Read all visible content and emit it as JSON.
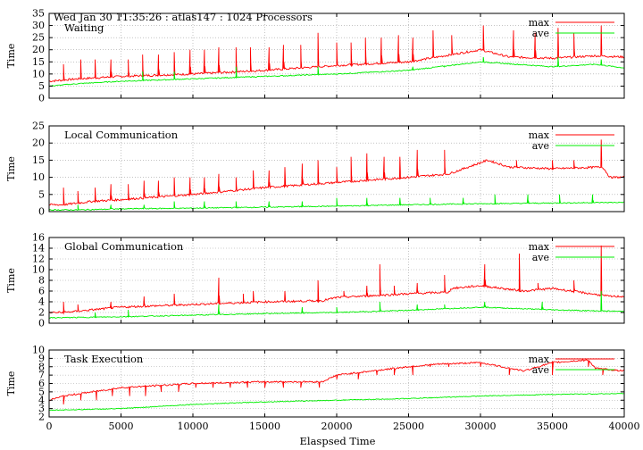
{
  "header": {
    "timestamp_line": "Wed Jan 30 11:35:26 : atlas147 : 1024 Processors"
  },
  "colors": {
    "max": "#ff0000",
    "ave": "#00ee00",
    "grid": "#a0a0a0"
  },
  "shared_xlabel": "Elaspsed Time",
  "chart_data": [
    {
      "type": "line",
      "title": "Waiting",
      "ylabel": "Time",
      "xlim": [
        0,
        40000
      ],
      "ylim": [
        0,
        35
      ],
      "yticks": [
        0,
        5,
        10,
        15,
        20,
        25,
        30,
        35
      ],
      "xticks": [
        0,
        5000,
        10000,
        15000,
        20000,
        25000,
        30000,
        35000,
        40000
      ],
      "grid": true,
      "legend_position": "top-right",
      "series": [
        {
          "name": "max",
          "x": [
            0,
            2000,
            5000,
            10000,
            15000,
            20000,
            25000,
            30000,
            32000,
            35000,
            38000,
            40000
          ],
          "values": [
            7,
            8,
            9,
            10,
            11.5,
            13.5,
            15,
            20,
            17,
            16.5,
            17.5,
            17
          ],
          "spikes": [
            [
              1000,
              14
            ],
            [
              2200,
              16
            ],
            [
              3200,
              16
            ],
            [
              4300,
              16
            ],
            [
              5500,
              16
            ],
            [
              6500,
              18
            ],
            [
              7600,
              18
            ],
            [
              8700,
              19
            ],
            [
              9800,
              20
            ],
            [
              10800,
              20
            ],
            [
              11800,
              21
            ],
            [
              13000,
              21
            ],
            [
              14000,
              21
            ],
            [
              15300,
              21
            ],
            [
              16300,
              22
            ],
            [
              17500,
              22
            ],
            [
              18700,
              27
            ],
            [
              20000,
              23
            ],
            [
              21000,
              23
            ],
            [
              22000,
              25
            ],
            [
              23100,
              25
            ],
            [
              24300,
              26
            ],
            [
              25300,
              25
            ],
            [
              26700,
              28
            ],
            [
              28000,
              26
            ],
            [
              30200,
              30
            ],
            [
              32300,
              28
            ],
            [
              33800,
              27
            ],
            [
              35400,
              29
            ],
            [
              36500,
              27
            ],
            [
              38400,
              30
            ]
          ]
        },
        {
          "name": "ave",
          "x": [
            0,
            2000,
            5000,
            10000,
            15000,
            20000,
            25000,
            30000,
            35000,
            38000,
            40000
          ],
          "values": [
            5,
            6,
            7,
            8,
            9,
            10,
            11.5,
            15,
            13,
            14,
            12.5
          ],
          "spikes": [
            [
              6500,
              11
            ],
            [
              8700,
              11
            ],
            [
              13000,
              13
            ],
            [
              18700,
              13
            ],
            [
              25300,
              13
            ],
            [
              27500,
              13
            ],
            [
              30200,
              17
            ],
            [
              35400,
              17
            ],
            [
              38400,
              16
            ]
          ]
        }
      ]
    },
    {
      "type": "line",
      "title": "Local Communication",
      "ylabel": "Time",
      "xlim": [
        0,
        40000
      ],
      "ylim": [
        0,
        25
      ],
      "yticks": [
        0,
        5,
        10,
        15,
        20,
        25
      ],
      "xticks": [
        0,
        5000,
        10000,
        15000,
        20000,
        25000,
        30000,
        35000,
        40000
      ],
      "grid": true,
      "legend_position": "top-right",
      "series": [
        {
          "name": "max",
          "x": [
            0,
            1000,
            3000,
            5000,
            10000,
            15000,
            20000,
            25000,
            27800,
            30500,
            32000,
            35000,
            38500,
            39000,
            40000
          ],
          "values": [
            2,
            2,
            3,
            3.5,
            5,
            7,
            8.5,
            10,
            11,
            15,
            13,
            12.5,
            13,
            10,
            10
          ],
          "spikes": [
            [
              1000,
              7
            ],
            [
              2000,
              6
            ],
            [
              3200,
              7
            ],
            [
              4300,
              8
            ],
            [
              5500,
              8
            ],
            [
              6600,
              9
            ],
            [
              7600,
              9
            ],
            [
              8700,
              10
            ],
            [
              9800,
              10
            ],
            [
              10800,
              10
            ],
            [
              11800,
              11
            ],
            [
              13000,
              10
            ],
            [
              14200,
              12
            ],
            [
              15300,
              12
            ],
            [
              16400,
              13
            ],
            [
              17600,
              14
            ],
            [
              18700,
              15
            ],
            [
              20000,
              13
            ],
            [
              21000,
              16
            ],
            [
              22100,
              17
            ],
            [
              23300,
              16
            ],
            [
              24400,
              16
            ],
            [
              25600,
              18
            ],
            [
              27500,
              18
            ],
            [
              32500,
              15
            ],
            [
              35000,
              15
            ],
            [
              36500,
              15
            ],
            [
              38400,
              21
            ]
          ]
        },
        {
          "name": "ave",
          "x": [
            0,
            2000,
            5000,
            10000,
            15000,
            20000,
            25000,
            30000,
            35000,
            40000
          ],
          "values": [
            0.5,
            0.5,
            0.8,
            1,
            1.3,
            1.6,
            2,
            2.3,
            2.5,
            2.7
          ],
          "spikes": [
            [
              2000,
              2
            ],
            [
              4300,
              2
            ],
            [
              6600,
              2
            ],
            [
              8700,
              3
            ],
            [
              10800,
              3
            ],
            [
              13000,
              3
            ],
            [
              15300,
              3
            ],
            [
              17600,
              3
            ],
            [
              20000,
              4
            ],
            [
              22100,
              4
            ],
            [
              24400,
              4
            ],
            [
              26500,
              4
            ],
            [
              28800,
              4
            ],
            [
              31000,
              5
            ],
            [
              33300,
              5
            ],
            [
              35500,
              5
            ],
            [
              37800,
              5
            ]
          ]
        }
      ]
    },
    {
      "type": "line",
      "title": "Global Communication",
      "ylabel": "Time",
      "xlim": [
        0,
        40000
      ],
      "ylim": [
        0,
        16
      ],
      "yticks": [
        0,
        2,
        4,
        6,
        8,
        10,
        12,
        14,
        16
      ],
      "xticks": [
        0,
        5000,
        10000,
        15000,
        20000,
        25000,
        30000,
        35000,
        40000
      ],
      "grid": true,
      "legend_position": "top-right",
      "series": [
        {
          "name": "max",
          "x": [
            0,
            1000,
            3000,
            5000,
            10000,
            15000,
            19000,
            20000,
            25000,
            27800,
            28000,
            30000,
            33000,
            35000,
            39000,
            40000
          ],
          "values": [
            2,
            2,
            2.5,
            3,
            3.5,
            4,
            4.2,
            4.8,
            5.5,
            5.8,
            6.5,
            7,
            6,
            6.5,
            5,
            5
          ],
          "spikes": [
            [
              1000,
              4
            ],
            [
              2000,
              3.5
            ],
            [
              4300,
              4
            ],
            [
              6600,
              5
            ],
            [
              8700,
              5.5
            ],
            [
              11800,
              8.5
            ],
            [
              13500,
              5.5
            ],
            [
              14200,
              6
            ],
            [
              16400,
              6
            ],
            [
              18700,
              8
            ],
            [
              20500,
              6
            ],
            [
              22100,
              7
            ],
            [
              23000,
              11
            ],
            [
              24000,
              7
            ],
            [
              25600,
              7.5
            ],
            [
              27500,
              9
            ],
            [
              30300,
              11
            ],
            [
              32700,
              13
            ],
            [
              34000,
              7.5
            ],
            [
              36500,
              8
            ],
            [
              38400,
              14.5
            ]
          ]
        },
        {
          "name": "ave",
          "x": [
            0,
            5000,
            10000,
            15000,
            20000,
            25000,
            30000,
            35000,
            38000,
            40000
          ],
          "values": [
            1,
            1.2,
            1.5,
            1.8,
            2,
            2.4,
            3,
            2.5,
            2.3,
            2.2
          ],
          "spikes": [
            [
              3200,
              2
            ],
            [
              5500,
              2.5
            ],
            [
              11800,
              3.5
            ],
            [
              17600,
              3
            ],
            [
              20000,
              3
            ],
            [
              23000,
              4
            ],
            [
              25600,
              3.5
            ],
            [
              27500,
              3.5
            ],
            [
              30300,
              4
            ],
            [
              34300,
              4
            ],
            [
              38400,
              6
            ]
          ]
        }
      ]
    },
    {
      "type": "line",
      "title": "Task Execution",
      "ylabel": "Time",
      "xlabel": "Elaspsed Time",
      "xlim": [
        0,
        40000
      ],
      "ylim": [
        2,
        10
      ],
      "yticks": [
        2,
        3,
        4,
        5,
        6,
        7,
        8,
        9,
        10
      ],
      "xticks": [
        0,
        5000,
        10000,
        15000,
        20000,
        25000,
        30000,
        35000,
        40000
      ],
      "xtick_labels": [
        "0",
        "5000",
        "10000",
        "15000",
        "20000",
        "25000",
        "30000",
        "35000",
        "40000"
      ],
      "grid": true,
      "legend_position": "top-right",
      "series": [
        {
          "name": "max",
          "x": [
            0,
            1000,
            3000,
            5000,
            10000,
            15000,
            19000,
            20000,
            25000,
            27000,
            30000,
            33000,
            35000,
            37500,
            38000,
            40000
          ],
          "values": [
            4,
            4.5,
            5,
            5.5,
            6,
            6.2,
            6.2,
            7,
            8,
            8.3,
            8.5,
            7.5,
            8.5,
            8.8,
            7.8,
            7.5
          ],
          "dips": [
            [
              1000,
              3.5
            ],
            [
              2200,
              4
            ],
            [
              3300,
              4
            ],
            [
              4400,
              4.5
            ],
            [
              5600,
              4.5
            ],
            [
              6700,
              4.5
            ],
            [
              7800,
              5
            ],
            [
              9000,
              5
            ],
            [
              10200,
              5.5
            ],
            [
              11400,
              5.5
            ],
            [
              12600,
              5.5
            ],
            [
              13800,
              5.5
            ],
            [
              15000,
              5.5
            ],
            [
              16300,
              5.5
            ],
            [
              17500,
              5.5
            ],
            [
              18800,
              5.5
            ],
            [
              20000,
              6.5
            ],
            [
              21500,
              6.5
            ],
            [
              22800,
              7
            ],
            [
              24000,
              7
            ],
            [
              25300,
              7
            ],
            [
              26500,
              8
            ],
            [
              27800,
              8
            ],
            [
              30000,
              8
            ],
            [
              32000,
              7
            ],
            [
              35000,
              7
            ],
            [
              37500,
              8
            ],
            [
              38500,
              7
            ]
          ]
        },
        {
          "name": "ave",
          "x": [
            0,
            5000,
            10000,
            15000,
            20000,
            25000,
            30000,
            35000,
            40000
          ],
          "values": [
            2.8,
            3,
            3.5,
            3.8,
            4,
            4.2,
            4.5,
            4.7,
            4.8
          ]
        }
      ]
    }
  ]
}
